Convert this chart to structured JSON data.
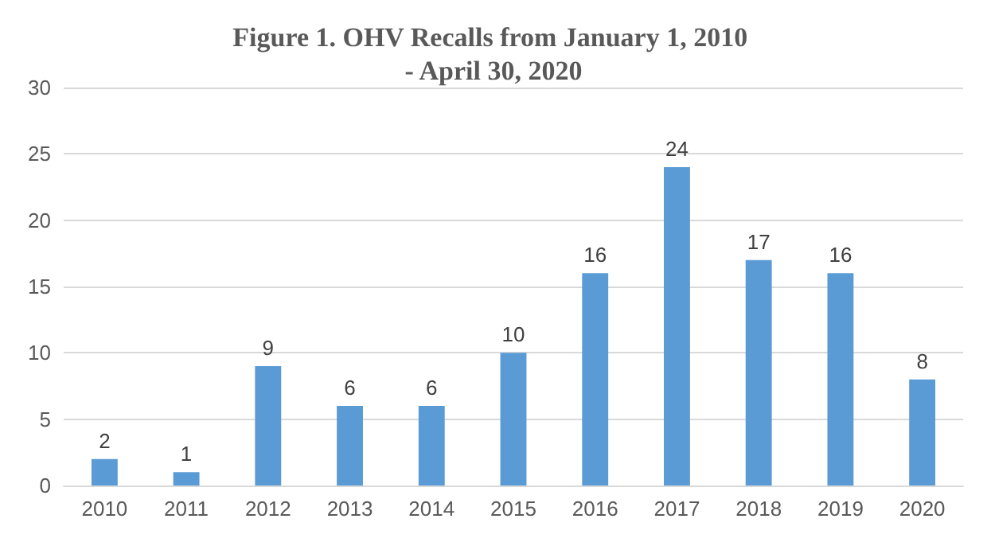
{
  "chart_data": {
    "type": "bar",
    "title": "Figure 1. OHV Recalls from January 1, 2010 - April 30, 2020",
    "categories": [
      "2010",
      "2011",
      "2012",
      "2013",
      "2014",
      "2015",
      "2016",
      "2017",
      "2018",
      "2019",
      "2020"
    ],
    "values": [
      2,
      1,
      9,
      6,
      6,
      10,
      16,
      24,
      17,
      16,
      8
    ],
    "color": "#5b9bd5",
    "ylim": [
      0,
      30
    ],
    "yticks": [
      0,
      5,
      10,
      15,
      20,
      25,
      30
    ],
    "grid": "y",
    "data_labels": true
  }
}
